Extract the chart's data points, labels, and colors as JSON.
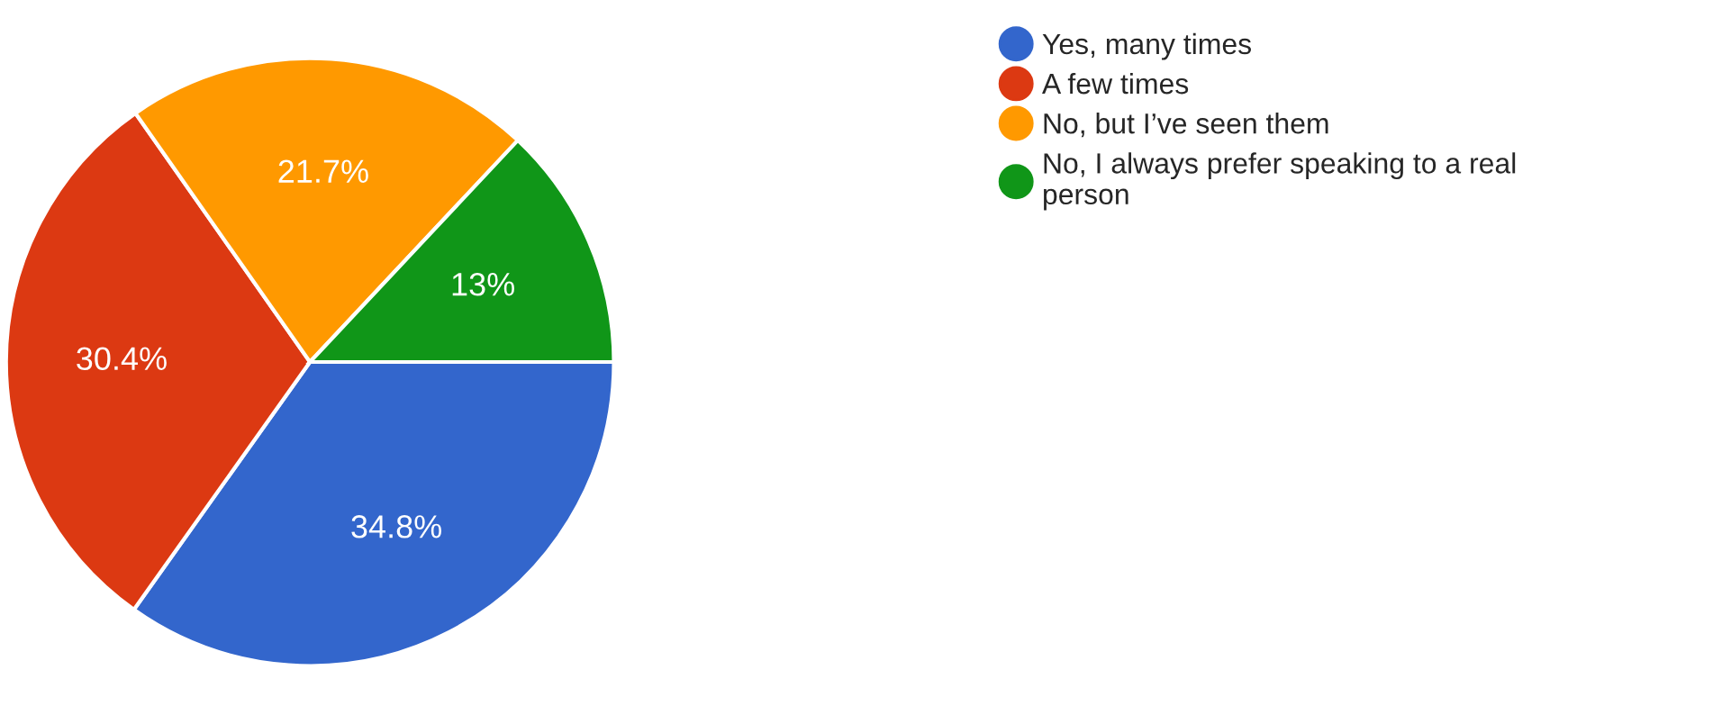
{
  "chart_data": {
    "type": "pie",
    "categories": [
      "Yes, many times",
      "A few times",
      "No, but I’ve seen them",
      "No, I always prefer speaking to a real person"
    ],
    "values": [
      34.8,
      30.4,
      21.7,
      13
    ],
    "colors": [
      "#3366cc",
      "#dc3912",
      "#ff9900",
      "#109618"
    ],
    "value_labels": [
      "34.8%",
      "30.4%",
      "21.7%",
      "13%"
    ],
    "legend": "right"
  }
}
